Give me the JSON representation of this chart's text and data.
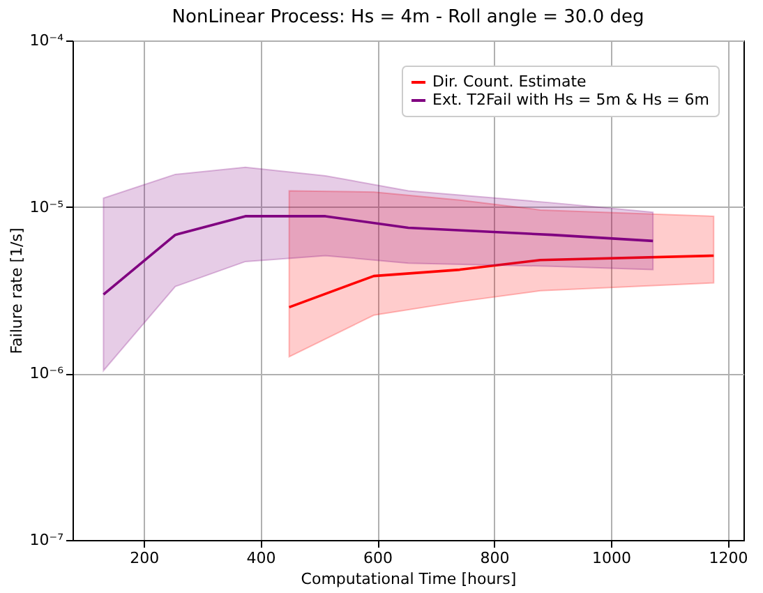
{
  "chart_data": {
    "type": "line",
    "title": "NonLinear Process: Hs = 4m - Roll angle = 30.0 deg",
    "xlabel": "Computational Time [hours]",
    "ylabel": "Failure rate [1/s]",
    "log": "y",
    "grid": true,
    "legend": "top right",
    "xlim": [
      78,
      1227
    ],
    "xticks": [
      200,
      400,
      600,
      800,
      1000,
      1200
    ],
    "ylim": [
      1e-07,
      0.0001
    ],
    "yticks": [
      {
        "value": 1e-07,
        "label": "10⁻⁷"
      },
      {
        "value": 1e-06,
        "label": "10⁻⁶"
      },
      {
        "value": 1e-05,
        "label": "10⁻⁵"
      },
      {
        "value": 0.0001,
        "label": "10⁻⁴"
      }
    ],
    "series": [
      {
        "name": "Dir. Count. Estimate",
        "color": "#ff0000",
        "x": [
          449,
          594,
          741,
          879,
          1176
        ],
        "values": [
          2.5e-06,
          3.85e-06,
          4.2e-06,
          4.8e-06,
          5.1e-06
        ],
        "lower": [
          1.26e-06,
          2.24e-06,
          2.7e-06,
          3.14e-06,
          3.5e-06
        ],
        "upper": [
          1.25e-05,
          1.23e-05,
          1.1e-05,
          9.6e-06,
          8.8e-06
        ]
      },
      {
        "name": "Ext. T2Fail with Hs = 5m & Hs = 6m",
        "color": "#800080",
        "x": [
          131,
          254,
          374,
          511,
          653,
          899,
          1072
        ],
        "values": [
          2.98e-06,
          6.8e-06,
          8.8e-06,
          8.8e-06,
          7.5e-06,
          6.8e-06,
          6.25e-06
        ],
        "lower": [
          1.04e-06,
          3.33e-06,
          4.7e-06,
          5.1e-06,
          4.6e-06,
          4.4e-06,
          4.2e-06
        ],
        "upper": [
          1.13e-05,
          1.57e-05,
          1.73e-05,
          1.54e-05,
          1.25e-05,
          1.06e-05,
          9.3e-06
        ]
      }
    ]
  }
}
